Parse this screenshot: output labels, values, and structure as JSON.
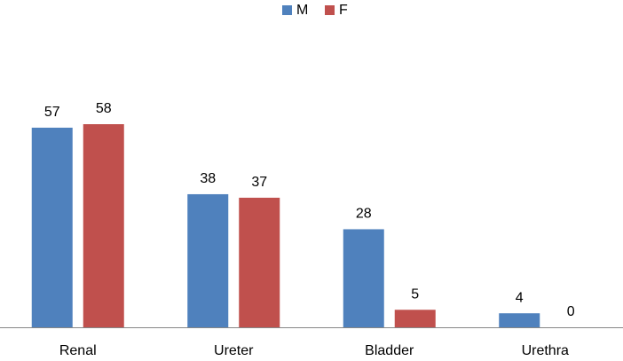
{
  "chart_data": {
    "type": "bar",
    "categories": [
      "Renal",
      "Ureter",
      "Bladder",
      "Urethra"
    ],
    "series": [
      {
        "name": "M",
        "color": "#4f81bd",
        "values": [
          57,
          38,
          28,
          4
        ]
      },
      {
        "name": "F",
        "color": "#c0504d",
        "values": [
          58,
          37,
          5,
          0
        ]
      }
    ],
    "legend": "top"
  }
}
